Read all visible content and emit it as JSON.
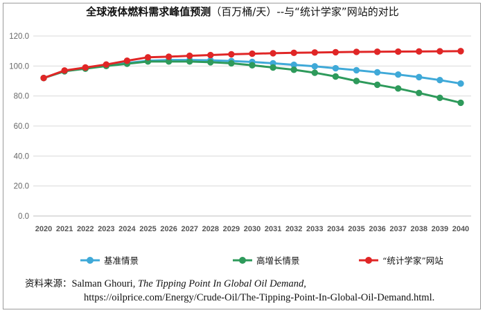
{
  "title": {
    "main": "全球液体燃料需求峰值预测",
    "unit": "（百万桶/天）--与“统计学家”网站的对比"
  },
  "chart_data": {
    "type": "line",
    "title": "全球液体燃料需求峰值预测（百万桶/天）--与“统计学家”网站的对比",
    "xlabel": "",
    "ylabel": "",
    "ylim": [
      0,
      120
    ],
    "y_ticks": [
      "0.0",
      "20.0",
      "40.0",
      "60.0",
      "80.0",
      "100.0",
      "120.0"
    ],
    "grid": true,
    "legend_position": "bottom",
    "categories": [
      "2020",
      "2021",
      "2022",
      "2023",
      "2024",
      "2025",
      "2026",
      "2027",
      "2028",
      "2029",
      "2030",
      "2031",
      "2032",
      "2033",
      "2034",
      "2035",
      "2036",
      "2037",
      "2038",
      "2039",
      "2040"
    ],
    "series": [
      {
        "name": "基准情景",
        "color": "#3fa9d8",
        "values": [
          92.0,
          96.5,
          98.5,
          100.5,
          102.0,
          103.5,
          104.0,
          104.0,
          103.8,
          103.3,
          102.7,
          101.8,
          100.8,
          99.8,
          98.5,
          97.2,
          95.8,
          94.3,
          92.6,
          90.6,
          88.3
        ]
      },
      {
        "name": "高增长情景",
        "color": "#2e9a5b",
        "values": [
          92.0,
          96.5,
          98.2,
          100.0,
          101.5,
          103.0,
          103.0,
          103.0,
          102.5,
          101.8,
          100.5,
          99.0,
          97.5,
          95.5,
          93.0,
          90.0,
          87.5,
          85.0,
          82.0,
          78.8,
          75.5
        ]
      },
      {
        "name": "“统计学家”网站",
        "color": "#e02626",
        "values": [
          92.0,
          97.0,
          99.0,
          101.0,
          103.5,
          105.8,
          106.2,
          106.8,
          107.3,
          107.8,
          108.2,
          108.5,
          108.8,
          109.0,
          109.2,
          109.4,
          109.5,
          109.6,
          109.7,
          109.8,
          109.9
        ]
      }
    ]
  },
  "source": {
    "label": "资料来源：",
    "author": "Salman Ghouri, ",
    "work_title": "The Tipping Point In Global Oil Demand,",
    "url": "https://oilprice.com/Energy/Crude-Oil/The-Tipping-Point-In-Global-Oil-Demand.html."
  }
}
